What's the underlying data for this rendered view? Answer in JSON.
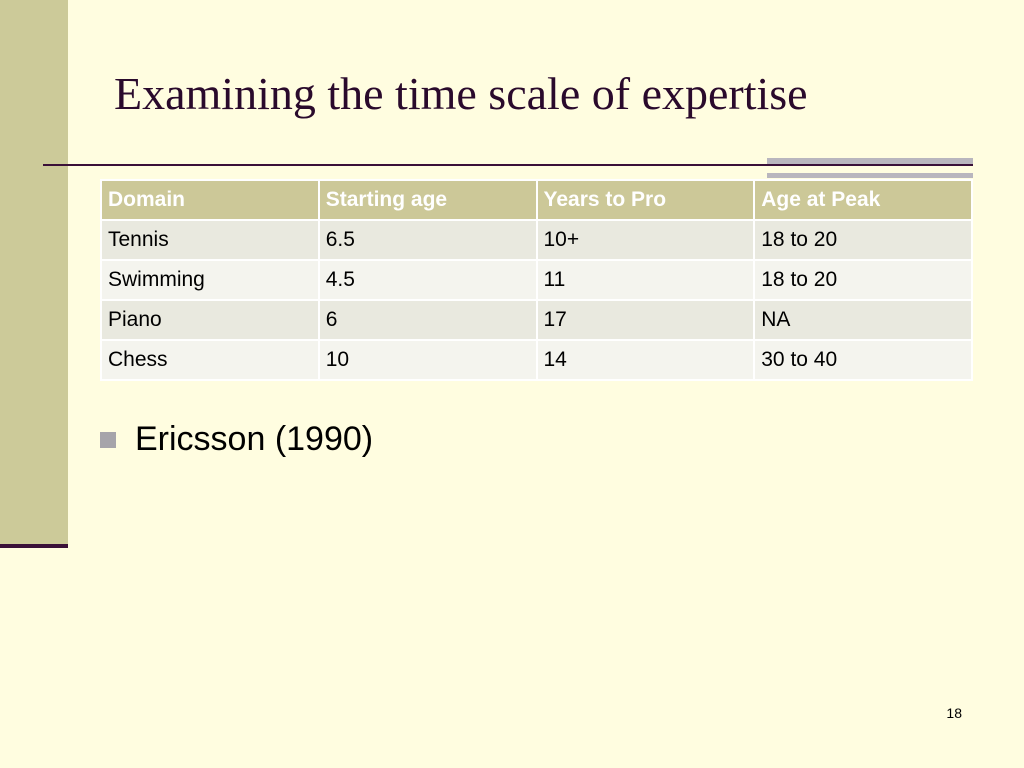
{
  "slide": {
    "title": "Examining the time scale of expertise",
    "page_number": "18",
    "colors": {
      "background": "#FFFDE0",
      "left_band": "#CCCA99",
      "title_text": "#2A0A2C",
      "rule": "#3A1038",
      "table_header": "#CCC898",
      "bullet": "#A6A4AA"
    }
  },
  "table": {
    "headers": [
      "Domain",
      "Starting age",
      "Years to Pro",
      "Age at Peak"
    ],
    "rows": [
      [
        "Tennis",
        "6.5",
        "10+",
        "18 to 20"
      ],
      [
        "Swimming",
        "4.5",
        "11",
        "18 to 20"
      ],
      [
        "Piano",
        "6",
        "17",
        "NA"
      ],
      [
        "Chess",
        "10",
        "14",
        "30 to 40"
      ]
    ]
  },
  "bullets": [
    {
      "icon": "square-bullet-icon",
      "text": "Ericsson (1990)"
    }
  ]
}
